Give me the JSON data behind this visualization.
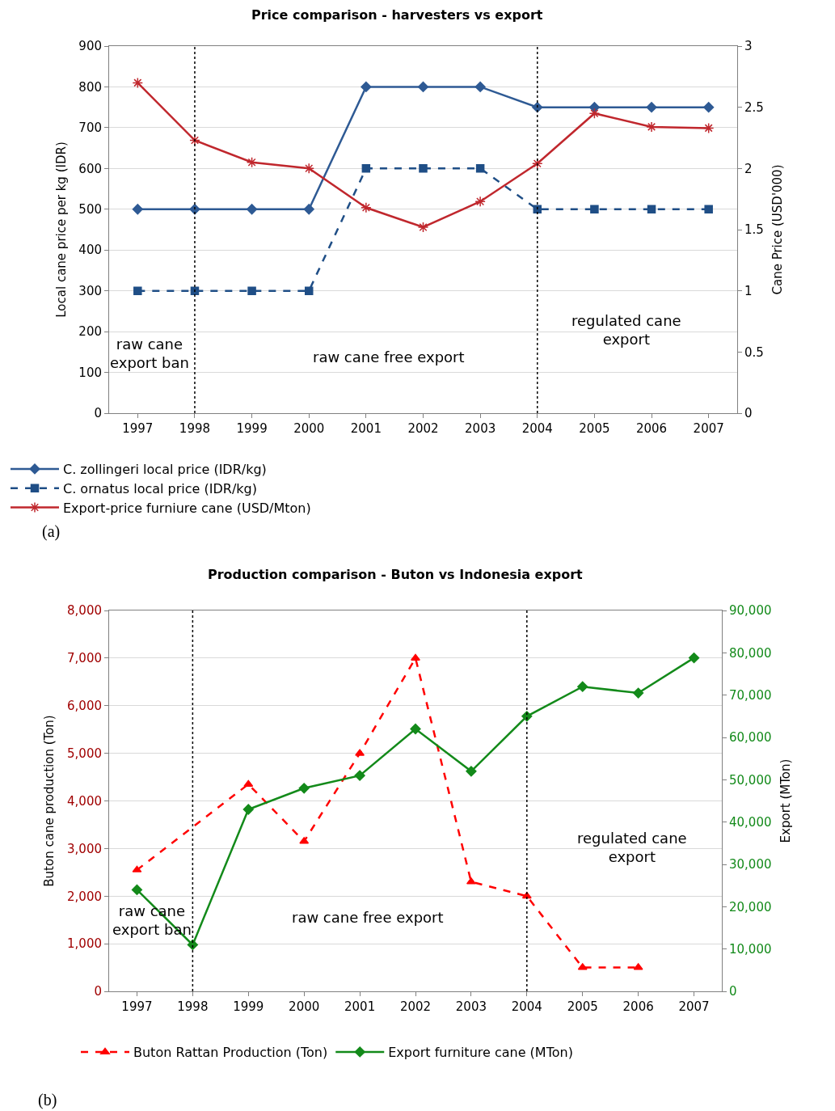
{
  "chart_data": [
    {
      "type": "line",
      "title": "Price comparison - harvesters vs export",
      "ylabel": "Local cane price per kg (IDR)",
      "y2label": "Cane Price (USD'000)",
      "categories": [
        "1997",
        "1998",
        "1999",
        "2000",
        "2001",
        "2002",
        "2003",
        "2004",
        "2005",
        "2006",
        "2007"
      ],
      "series": [
        {
          "name": "C. zollingeri local price (IDR/kg)",
          "color": "#2e5a94",
          "marker": "diamond",
          "line_style": "solid",
          "values": [
            500,
            500,
            500,
            500,
            800,
            800,
            800,
            750,
            750,
            750,
            750
          ]
        },
        {
          "name": "C. ornatus local price (IDR/kg)",
          "color": "#1f4e86",
          "marker": "square",
          "line_style": "dashed",
          "values": [
            300,
            300,
            300,
            300,
            600,
            600,
            600,
            500,
            500,
            500,
            500
          ]
        },
        {
          "name": "Export-price furniure cane (USD/Mton)",
          "color": "#c0272d",
          "marker": "cross",
          "line_style": "solid",
          "axis": "y2",
          "values": [
            2.7,
            2.23,
            2.05,
            2.0,
            1.68,
            1.52,
            1.73,
            2.04,
            2.45,
            2.34,
            2.33
          ]
        }
      ],
      "ylim": [
        0,
        900
      ],
      "yticks": [
        0,
        100,
        200,
        300,
        400,
        500,
        600,
        700,
        800,
        900
      ],
      "y2lim": [
        0,
        3
      ],
      "y2ticks": [
        0,
        0.5,
        1,
        1.5,
        2,
        2.5,
        3
      ],
      "ref_lines": [
        {
          "axis": "x",
          "value": "1998",
          "color": "#000000",
          "line_style": "dotted"
        },
        {
          "axis": "x",
          "value": "2004",
          "color": "#000000",
          "line_style": "dotted"
        }
      ],
      "annotations": [
        "raw cane\nexport ban",
        "raw cane free export",
        "regulated cane\nexport",
        "(a)"
      ],
      "grid": "y",
      "legend": "bottom"
    },
    {
      "type": "line",
      "title": "Production comparison - Buton vs Indonesia export",
      "ylabel": "Buton cane production (Ton)",
      "y2label": "Export (MTon)",
      "categories": [
        "1997",
        "1998",
        "1999",
        "2000",
        "2001",
        "2002",
        "2003",
        "2004",
        "2005",
        "2006",
        "2007"
      ],
      "series": [
        {
          "name": "Buton Rattan Production (Ton)",
          "color": "#ff0000",
          "marker": "triangle",
          "line_style": "dashed",
          "values": [
            2550,
            null,
            4350,
            3150,
            5000,
            7000,
            2300,
            2000,
            500,
            500,
            null
          ]
        },
        {
          "name": "Export furniture cane (MTon)",
          "color": "#138a1a",
          "marker": "diamond",
          "line_style": "solid",
          "axis": "y2",
          "values": [
            24000,
            11000,
            43000,
            48000,
            51000,
            62000,
            52000,
            65000,
            72000,
            70500,
            78800
          ]
        }
      ],
      "ylim": [
        0,
        8000
      ],
      "yticks": [
        0,
        {
          "value": 1000,
          "label": "1,000"
        },
        {
          "value": 2000,
          "label": "2,000"
        },
        {
          "value": 3000,
          "label": "3,000"
        },
        {
          "value": 4000,
          "label": "4,000"
        },
        {
          "value": 5000,
          "label": "5,000"
        },
        {
          "value": 6000,
          "label": "6,000"
        },
        {
          "value": 7000,
          "label": "7,000"
        },
        {
          "value": 8000,
          "label": "8,000"
        }
      ],
      "y2lim": [
        0,
        90000
      ],
      "y2ticks": [
        0,
        {
          "value": 10000,
          "label": "10,000"
        },
        {
          "value": 20000,
          "label": "20,000"
        },
        {
          "value": 30000,
          "label": "30,000"
        },
        {
          "value": 40000,
          "label": "40,000"
        },
        {
          "value": 50000,
          "label": "50,000"
        },
        {
          "value": 60000,
          "label": "60,000"
        },
        {
          "value": 70000,
          "label": "70,000"
        },
        {
          "value": 80000,
          "label": "80,000"
        },
        {
          "value": 90000,
          "label": "90,000"
        }
      ],
      "ref_lines": [
        {
          "axis": "x",
          "value": "1998",
          "color": "#000000",
          "line_style": "dotted"
        },
        {
          "axis": "x",
          "value": "2004",
          "color": "#000000",
          "line_style": "dotted"
        }
      ],
      "annotations": [
        "raw cane\nexport ban",
        "raw cane free export",
        "regulated cane\nexport",
        "(b)"
      ],
      "grid": "y",
      "legend": "bottom"
    }
  ]
}
